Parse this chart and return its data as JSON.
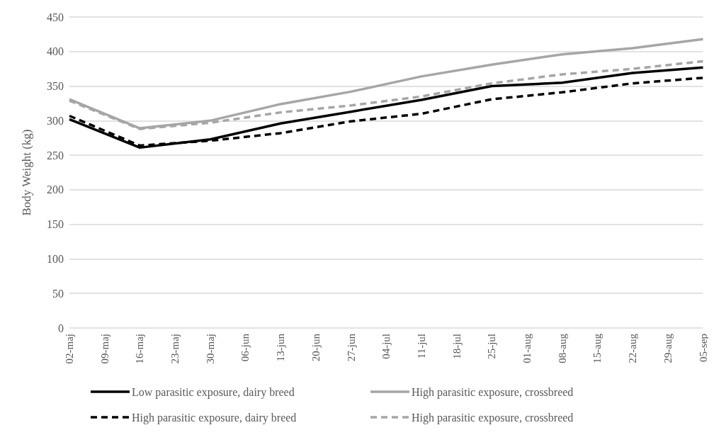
{
  "chart_data": {
    "type": "line",
    "ylabel": "Body Weight (kg)",
    "categories": [
      "02-maj",
      "09-maj",
      "16-maj",
      "23-maj",
      "30-maj",
      "06-jun",
      "13-jun",
      "20-jun",
      "27-jun",
      "04-jul",
      "11-jul",
      "18-jul",
      "25-jul",
      "01-aug",
      "08-aug",
      "15-aug",
      "22-aug",
      "29-aug",
      "05-sep"
    ],
    "ylim": [
      0,
      450
    ],
    "yticks": [
      0,
      50,
      100,
      150,
      200,
      250,
      300,
      350,
      400,
      450
    ],
    "grid": "y",
    "legend": "bottom",
    "marker": "none",
    "series": [
      {
        "name": "Low parasitic exposure, dairy breed",
        "color": "#000000",
        "line_style": "solid",
        "values": [
          302,
          null,
          261,
          null,
          273,
          null,
          296,
          null,
          313,
          null,
          330,
          null,
          350,
          null,
          355,
          null,
          369,
          null,
          377
        ]
      },
      {
        "name": "High parasitic exposure, crossbreed",
        "color": "#a6a6a6",
        "line_style": "solid",
        "values": [
          331,
          null,
          289,
          null,
          300,
          null,
          324,
          null,
          342,
          null,
          364,
          null,
          381,
          null,
          396,
          null,
          405,
          null,
          418
        ]
      },
      {
        "name": "High parasitic exposure, dairy breed",
        "color": "#000000",
        "line_style": "dashed",
        "values": [
          307,
          null,
          264,
          null,
          271,
          null,
          282,
          null,
          299,
          null,
          310,
          null,
          331,
          null,
          341,
          null,
          354,
          null,
          362
        ]
      },
      {
        "name": "High parasitic exposure, crossbreed",
        "color": "#a6a6a6",
        "line_style": "dashed",
        "values": [
          329,
          null,
          288,
          null,
          297,
          null,
          312,
          null,
          322,
          null,
          335,
          null,
          354,
          null,
          367,
          null,
          375,
          null,
          386
        ]
      }
    ]
  }
}
